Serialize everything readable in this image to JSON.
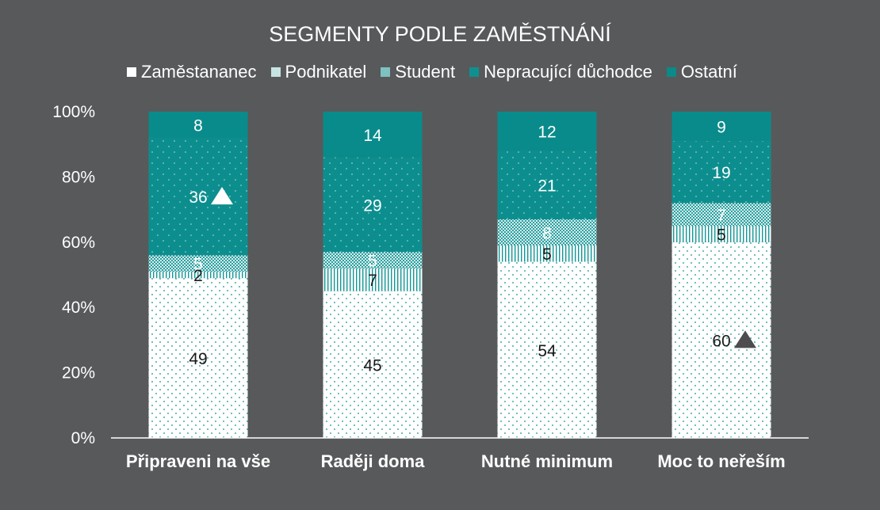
{
  "chart_data": {
    "type": "bar",
    "stacked": true,
    "normalized": true,
    "title": "SEGMENTY PODLE ZAMĚSTNÁNÍ",
    "categories": [
      "Připraveni na vše",
      "Raději doma",
      "Nutné minimum",
      "Moc to neřeším"
    ],
    "series": [
      {
        "name": "Zaměstananec",
        "values": [
          49,
          45,
          54,
          60
        ],
        "color": "#ffffff"
      },
      {
        "name": "Podnikatel",
        "values": [
          2,
          7,
          5,
          5
        ],
        "color": "#c7e4e4"
      },
      {
        "name": "Student",
        "values": [
          5,
          5,
          8,
          7
        ],
        "color": "#7fc1c1"
      },
      {
        "name": "Nepracující důchodce",
        "values": [
          36,
          29,
          21,
          19
        ],
        "color": "#0f9090"
      },
      {
        "name": "Ostatní",
        "values": [
          8,
          14,
          12,
          9
        ],
        "color": "#0a8a8a"
      }
    ],
    "yticks": [
      "0%",
      "20%",
      "40%",
      "60%",
      "80%",
      "100%"
    ],
    "ylim": [
      0,
      100
    ],
    "legend": "top",
    "grid": false,
    "annotations": [
      {
        "category": "Připraveni na vše",
        "series": "Nepracující důchodce",
        "marker": "triangle-up",
        "color": "#ffffff"
      },
      {
        "category": "Moc to neřeším",
        "series": "Zaměstananec",
        "marker": "triangle-up",
        "color": "#4d4d4f"
      }
    ]
  }
}
